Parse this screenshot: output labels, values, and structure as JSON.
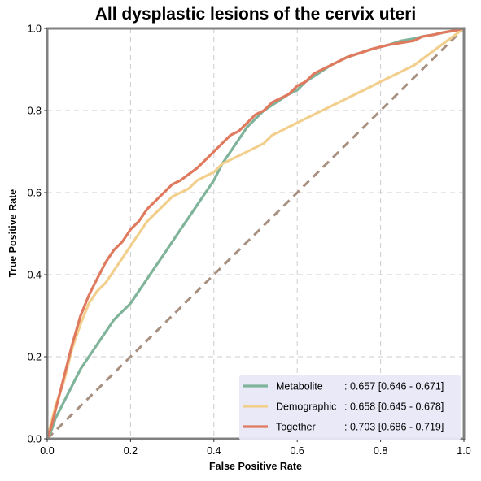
{
  "chart_data": {
    "type": "line",
    "title": "All dysplastic lesions of the cervix uteri",
    "xlabel": "False Positive Rate",
    "ylabel": "True Positive Rate",
    "xlim": [
      0,
      1
    ],
    "ylim": [
      0,
      1
    ],
    "grid": true,
    "legend_position": "bottom-right",
    "x_ticks": [
      "0.0",
      "0.2",
      "0.4",
      "0.6",
      "0.8",
      "1.0"
    ],
    "y_ticks": [
      "0.0",
      "0.2",
      "0.4",
      "0.6",
      "0.8",
      "1.0"
    ],
    "series": [
      {
        "name": "Metabolite",
        "legend_name": "Metabolite     ",
        "legend_value": ": 0.657 [0.646 - 0.671]",
        "color": "#7fb39a",
        "points": [
          [
            0,
            0
          ],
          [
            0.01,
            0.02
          ],
          [
            0.02,
            0.05
          ],
          [
            0.04,
            0.09
          ],
          [
            0.06,
            0.13
          ],
          [
            0.08,
            0.17
          ],
          [
            0.1,
            0.2
          ],
          [
            0.12,
            0.23
          ],
          [
            0.14,
            0.26
          ],
          [
            0.16,
            0.29
          ],
          [
            0.18,
            0.31
          ],
          [
            0.2,
            0.33
          ],
          [
            0.22,
            0.36
          ],
          [
            0.24,
            0.39
          ],
          [
            0.26,
            0.42
          ],
          [
            0.28,
            0.45
          ],
          [
            0.3,
            0.48
          ],
          [
            0.32,
            0.51
          ],
          [
            0.34,
            0.54
          ],
          [
            0.36,
            0.57
          ],
          [
            0.38,
            0.6
          ],
          [
            0.4,
            0.63
          ],
          [
            0.42,
            0.67
          ],
          [
            0.44,
            0.7
          ],
          [
            0.46,
            0.73
          ],
          [
            0.48,
            0.76
          ],
          [
            0.5,
            0.78
          ],
          [
            0.52,
            0.8
          ],
          [
            0.55,
            0.82
          ],
          [
            0.58,
            0.84
          ],
          [
            0.6,
            0.85
          ],
          [
            0.62,
            0.87
          ],
          [
            0.65,
            0.89
          ],
          [
            0.68,
            0.91
          ],
          [
            0.7,
            0.92
          ],
          [
            0.72,
            0.93
          ],
          [
            0.75,
            0.94
          ],
          [
            0.78,
            0.95
          ],
          [
            0.8,
            0.955
          ],
          [
            0.82,
            0.96
          ],
          [
            0.85,
            0.97
          ],
          [
            0.88,
            0.975
          ],
          [
            0.9,
            0.98
          ],
          [
            0.93,
            0.985
          ],
          [
            0.95,
            0.99
          ],
          [
            0.98,
            0.995
          ],
          [
            1,
            1
          ]
        ]
      },
      {
        "name": "Demographic",
        "legend_name": "Demographic",
        "legend_value": ": 0.658 [0.645 - 0.678]",
        "color": "#f2cf8d",
        "points": [
          [
            0,
            0
          ],
          [
            0.01,
            0.04
          ],
          [
            0.02,
            0.08
          ],
          [
            0.03,
            0.11
          ],
          [
            0.04,
            0.14
          ],
          [
            0.06,
            0.22
          ],
          [
            0.08,
            0.28
          ],
          [
            0.1,
            0.33
          ],
          [
            0.12,
            0.36
          ],
          [
            0.14,
            0.38
          ],
          [
            0.16,
            0.41
          ],
          [
            0.18,
            0.44
          ],
          [
            0.2,
            0.47
          ],
          [
            0.22,
            0.5
          ],
          [
            0.24,
            0.53
          ],
          [
            0.26,
            0.55
          ],
          [
            0.28,
            0.57
          ],
          [
            0.3,
            0.59
          ],
          [
            0.32,
            0.6
          ],
          [
            0.34,
            0.61
          ],
          [
            0.36,
            0.63
          ],
          [
            0.38,
            0.64
          ],
          [
            0.4,
            0.65
          ],
          [
            0.42,
            0.67
          ],
          [
            0.44,
            0.68
          ],
          [
            0.46,
            0.69
          ],
          [
            0.48,
            0.7
          ],
          [
            0.5,
            0.71
          ],
          [
            0.52,
            0.72
          ],
          [
            0.54,
            0.74
          ],
          [
            0.56,
            0.75
          ],
          [
            0.58,
            0.76
          ],
          [
            0.6,
            0.77
          ],
          [
            0.62,
            0.78
          ],
          [
            0.64,
            0.79
          ],
          [
            0.66,
            0.8
          ],
          [
            0.68,
            0.81
          ],
          [
            0.7,
            0.82
          ],
          [
            0.72,
            0.83
          ],
          [
            0.74,
            0.84
          ],
          [
            0.76,
            0.85
          ],
          [
            0.78,
            0.86
          ],
          [
            0.8,
            0.87
          ],
          [
            0.82,
            0.88
          ],
          [
            0.84,
            0.89
          ],
          [
            0.86,
            0.9
          ],
          [
            0.88,
            0.91
          ],
          [
            0.9,
            0.925
          ],
          [
            0.92,
            0.94
          ],
          [
            0.94,
            0.955
          ],
          [
            0.96,
            0.97
          ],
          [
            0.98,
            0.985
          ],
          [
            1,
            1
          ]
        ]
      },
      {
        "name": "Together",
        "legend_name": "Together       ",
        "legend_value": ": 0.703 [0.686 - 0.719]",
        "color": "#e07a5f",
        "points": [
          [
            0,
            0
          ],
          [
            0.01,
            0.03
          ],
          [
            0.02,
            0.07
          ],
          [
            0.03,
            0.11
          ],
          [
            0.04,
            0.15
          ],
          [
            0.05,
            0.19
          ],
          [
            0.06,
            0.23
          ],
          [
            0.08,
            0.3
          ],
          [
            0.1,
            0.35
          ],
          [
            0.12,
            0.39
          ],
          [
            0.14,
            0.43
          ],
          [
            0.16,
            0.46
          ],
          [
            0.18,
            0.48
          ],
          [
            0.2,
            0.51
          ],
          [
            0.22,
            0.53
          ],
          [
            0.24,
            0.56
          ],
          [
            0.26,
            0.58
          ],
          [
            0.28,
            0.6
          ],
          [
            0.3,
            0.62
          ],
          [
            0.32,
            0.63
          ],
          [
            0.34,
            0.645
          ],
          [
            0.36,
            0.66
          ],
          [
            0.38,
            0.68
          ],
          [
            0.4,
            0.7
          ],
          [
            0.42,
            0.72
          ],
          [
            0.44,
            0.74
          ],
          [
            0.46,
            0.75
          ],
          [
            0.48,
            0.77
          ],
          [
            0.5,
            0.79
          ],
          [
            0.52,
            0.8
          ],
          [
            0.54,
            0.82
          ],
          [
            0.56,
            0.83
          ],
          [
            0.58,
            0.84
          ],
          [
            0.6,
            0.86
          ],
          [
            0.62,
            0.87
          ],
          [
            0.64,
            0.89
          ],
          [
            0.66,
            0.9
          ],
          [
            0.68,
            0.91
          ],
          [
            0.7,
            0.92
          ],
          [
            0.72,
            0.93
          ],
          [
            0.75,
            0.94
          ],
          [
            0.78,
            0.95
          ],
          [
            0.8,
            0.955
          ],
          [
            0.82,
            0.96
          ],
          [
            0.85,
            0.965
          ],
          [
            0.88,
            0.97
          ],
          [
            0.9,
            0.98
          ],
          [
            0.93,
            0.985
          ],
          [
            0.95,
            0.99
          ],
          [
            0.98,
            0.995
          ],
          [
            1,
            1
          ]
        ]
      }
    ],
    "reference_line": {
      "points": [
        [
          0,
          0
        ],
        [
          1,
          1
        ]
      ],
      "color": "#a89080",
      "style": "dashed"
    },
    "colors": {
      "frame": "#808080",
      "grid": "#cccccc",
      "legend_bg": "#e8e8f8"
    }
  }
}
